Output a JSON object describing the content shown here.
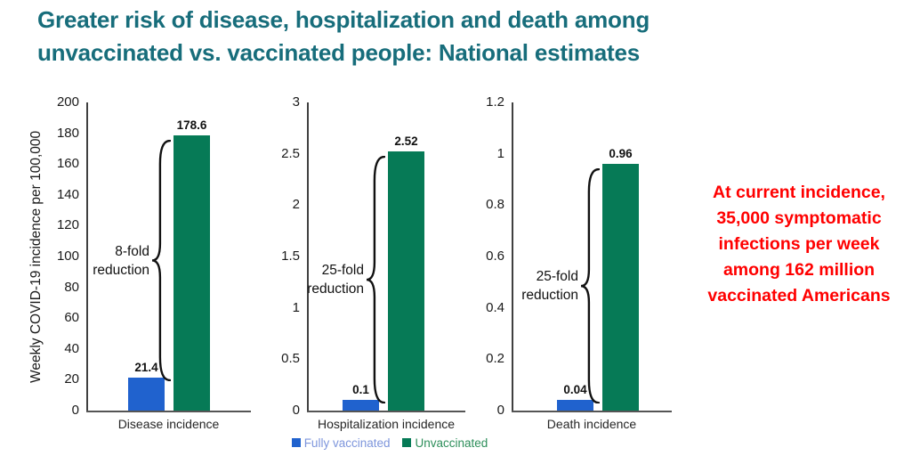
{
  "title_lines": [
    "Greater risk of disease, hospitalization and death among",
    "unvaccinated vs. vaccinated people: National estimates"
  ],
  "y_axis_label": "Weekly COVID-19 incidence per 100,000",
  "colors": {
    "title": "#176D7B",
    "bar_fully_vaccinated": "#2062CE",
    "bar_unvaccinated": "#067A56",
    "axis": "#555555",
    "callout_text": "#FF0000",
    "annotation_text": "#111111",
    "legend_fully_vaccinated_text": "#7E96DC",
    "legend_unvaccinated_text": "#2E8F5B"
  },
  "legend": {
    "items": [
      {
        "label": "Fully vaccinated",
        "swatch_color": "#2062CE",
        "text_color": "#7E96DC"
      },
      {
        "label": "Unvaccinated",
        "swatch_color": "#067A56",
        "text_color": "#2E8F5B"
      }
    ]
  },
  "callout": {
    "lines": [
      "At current incidence,",
      "35,000 symptomatic",
      "infections per week",
      "among 162 million",
      "vaccinated Americans"
    ]
  },
  "chart_data": [
    {
      "type": "bar",
      "categories": [
        "Fully vaccinated",
        "Unvaccinated"
      ],
      "values": [
        21.4,
        178.6
      ],
      "bar_labels": [
        "21.4",
        "178.6"
      ],
      "xlabel": "Disease incidence",
      "ylabel": "Weekly COVID-19 incidence per 100,000",
      "ylim": [
        0,
        200
      ],
      "yticks": [
        0,
        20,
        40,
        60,
        80,
        100,
        120,
        140,
        160,
        180,
        200
      ],
      "annotation": "8-fold reduction",
      "grid": false,
      "legend_position": "bottom"
    },
    {
      "type": "bar",
      "categories": [
        "Fully vaccinated",
        "Unvaccinated"
      ],
      "values": [
        0.1,
        2.52
      ],
      "bar_labels": [
        "0.1",
        "2.52"
      ],
      "xlabel": "Hospitalization incidence",
      "ylim": [
        0,
        3
      ],
      "yticks": [
        0,
        0.5,
        1,
        1.5,
        2,
        2.5,
        3
      ],
      "annotation": "25-fold reduction",
      "grid": false,
      "legend_position": "bottom"
    },
    {
      "type": "bar",
      "categories": [
        "Fully vaccinated",
        "Unvaccinated"
      ],
      "values": [
        0.04,
        0.96
      ],
      "bar_labels": [
        "0.04",
        "0.96"
      ],
      "xlabel": "Death incidence",
      "ylim": [
        0,
        1.2
      ],
      "yticks": [
        0,
        0.2,
        0.4,
        0.6,
        0.8,
        1,
        1.2
      ],
      "annotation": "25-fold reduction",
      "grid": false,
      "legend_position": "bottom"
    }
  ]
}
